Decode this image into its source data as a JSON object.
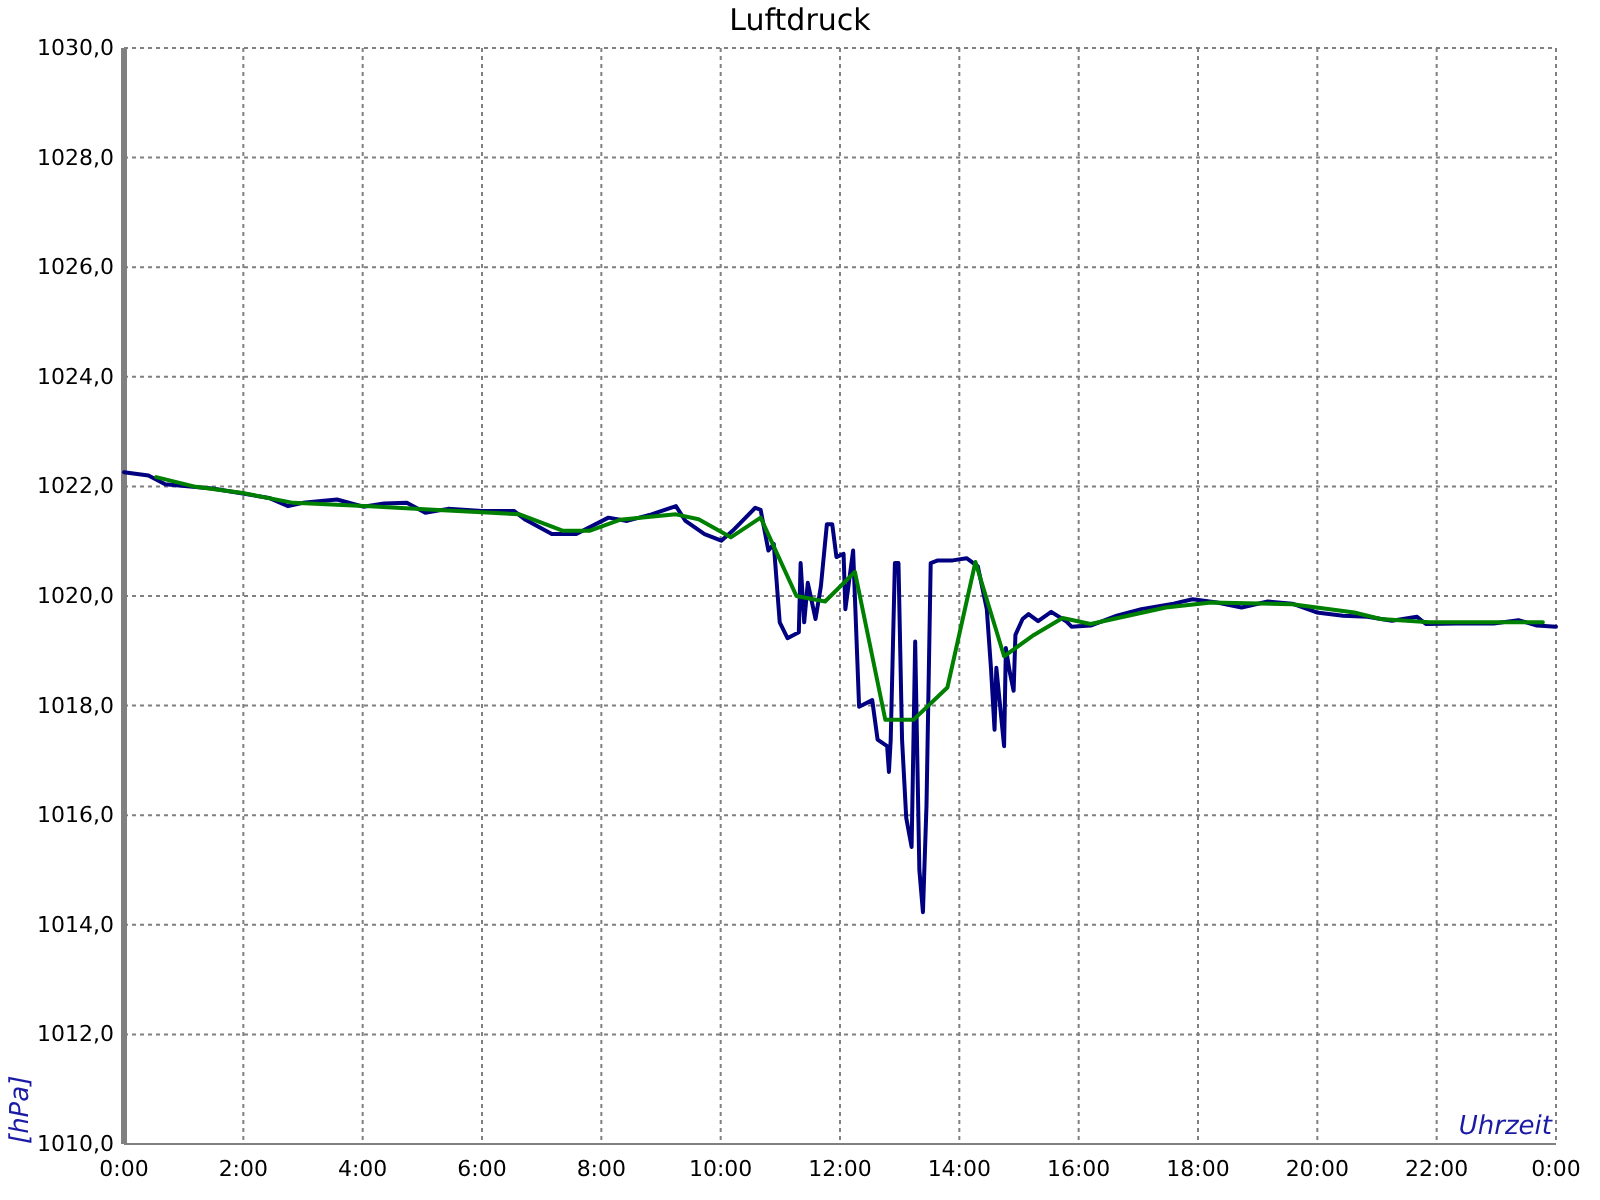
{
  "chart_data": {
    "type": "line",
    "title": "Luftdruck",
    "xlabel": "Uhrzeit",
    "ylabel": "[hPa]",
    "xlim": [
      0,
      24
    ],
    "xticks": [
      {
        "value": 0,
        "label": "0:00"
      },
      {
        "value": 2,
        "label": "2:00"
      },
      {
        "value": 4,
        "label": "4:00"
      },
      {
        "value": 6,
        "label": "6:00"
      },
      {
        "value": 8,
        "label": "8:00"
      },
      {
        "value": 10,
        "label": "10:00"
      },
      {
        "value": 12,
        "label": "12:00"
      },
      {
        "value": 14,
        "label": "14:00"
      },
      {
        "value": 16,
        "label": "16:00"
      },
      {
        "value": 18,
        "label": "18:00"
      },
      {
        "value": 20,
        "label": "20:00"
      },
      {
        "value": 22,
        "label": "22:00"
      },
      {
        "value": 24,
        "label": "0:00"
      }
    ],
    "ylim": [
      1010,
      1030
    ],
    "yticks": [
      {
        "value": 1010,
        "label": "1010,0"
      },
      {
        "value": 1012,
        "label": "1012,0"
      },
      {
        "value": 1014,
        "label": "1014,0"
      },
      {
        "value": 1016,
        "label": "1016,0"
      },
      {
        "value": 1018,
        "label": "1018,0"
      },
      {
        "value": 1020,
        "label": "1020,0"
      },
      {
        "value": 1022,
        "label": "1022,0"
      },
      {
        "value": 1024,
        "label": "1024,0"
      },
      {
        "value": 1026,
        "label": "1026,0"
      },
      {
        "value": 1028,
        "label": "1028,0"
      },
      {
        "value": 1030,
        "label": "1030,0"
      }
    ],
    "grid": true,
    "series": [
      {
        "color": "#000080",
        "x": [
          0.0,
          0.41,
          0.69,
          1.48,
          1.99,
          2.43,
          2.75,
          3.0,
          3.57,
          4.01,
          4.36,
          4.74,
          5.05,
          5.43,
          6.0,
          6.54,
          6.73,
          7.17,
          7.58,
          8.12,
          8.43,
          8.84,
          9.25,
          9.41,
          9.73,
          10.01,
          10.2,
          10.58,
          10.67,
          10.8,
          10.89,
          10.99,
          11.12,
          11.31,
          11.34,
          11.4,
          11.46,
          11.59,
          11.68,
          11.78,
          11.87,
          11.94,
          12.06,
          12.09,
          12.22,
          12.32,
          12.54,
          12.63,
          12.79,
          12.82,
          12.85,
          12.92,
          12.98,
          13.04,
          13.11,
          13.2,
          13.26,
          13.33,
          13.39,
          13.45,
          13.52,
          13.64,
          13.89,
          14.12,
          14.31,
          14.46,
          14.53,
          14.59,
          14.62,
          14.75,
          14.78,
          14.84,
          14.91,
          14.94,
          15.06,
          15.16,
          15.32,
          15.54,
          15.79,
          15.88,
          16.2,
          16.64,
          17.05,
          17.59,
          17.91,
          18.32,
          18.73,
          19.17,
          19.58,
          19.99,
          20.43,
          20.84,
          21.25,
          21.67,
          21.82,
          22.33,
          22.96,
          23.37,
          23.68,
          24.0
        ],
        "values": [
          1022.26,
          1022.2,
          1022.04,
          1021.96,
          1021.87,
          1021.79,
          1021.64,
          1021.7,
          1021.76,
          1021.63,
          1021.69,
          1021.7,
          1021.52,
          1021.59,
          1021.55,
          1021.55,
          1021.39,
          1021.13,
          1021.13,
          1021.43,
          1021.37,
          1021.49,
          1021.64,
          1021.37,
          1021.13,
          1021.01,
          1021.19,
          1021.61,
          1021.57,
          1020.83,
          1020.95,
          1019.52,
          1019.23,
          1019.34,
          1020.6,
          1019.52,
          1020.24,
          1019.58,
          1020.18,
          1021.31,
          1021.31,
          1020.71,
          1020.77,
          1019.76,
          1020.83,
          1017.98,
          1018.1,
          1017.38,
          1017.26,
          1016.79,
          1017.38,
          1020.6,
          1020.6,
          1017.38,
          1015.95,
          1015.42,
          1019.17,
          1015.0,
          1014.23,
          1016.19,
          1020.6,
          1020.65,
          1020.65,
          1020.69,
          1020.54,
          1019.76,
          1018.69,
          1017.56,
          1018.69,
          1017.26,
          1019.05,
          1018.64,
          1018.27,
          1019.29,
          1019.58,
          1019.67,
          1019.54,
          1019.71,
          1019.54,
          1019.44,
          1019.46,
          1019.64,
          1019.76,
          1019.86,
          1019.94,
          1019.88,
          1019.79,
          1019.9,
          1019.86,
          1019.7,
          1019.64,
          1019.62,
          1019.55,
          1019.62,
          1019.49,
          1019.5,
          1019.5,
          1019.56,
          1019.46,
          1019.44
        ]
      },
      {
        "color": "#008000",
        "x": [
          0.54,
          1.17,
          1.99,
          2.84,
          4.11,
          5.27,
          6.63,
          7.36,
          7.8,
          8.31,
          9.25,
          9.63,
          10.17,
          10.67,
          11.27,
          11.75,
          12.25,
          12.76,
          13.23,
          13.8,
          14.27,
          14.75,
          15.25,
          15.73,
          16.2,
          17.46,
          18.22,
          19.58,
          20.62,
          21.06,
          21.88,
          23.27,
          23.78
        ],
        "values": [
          1022.17,
          1022.0,
          1021.88,
          1021.7,
          1021.64,
          1021.57,
          1021.49,
          1021.19,
          1021.19,
          1021.39,
          1021.49,
          1021.4,
          1021.07,
          1021.43,
          1020.0,
          1019.9,
          1020.44,
          1017.74,
          1017.74,
          1018.33,
          1020.62,
          1018.9,
          1019.29,
          1019.6,
          1019.49,
          1019.79,
          1019.88,
          1019.85,
          1019.7,
          1019.58,
          1019.52,
          1019.52,
          1019.52
        ]
      }
    ]
  }
}
